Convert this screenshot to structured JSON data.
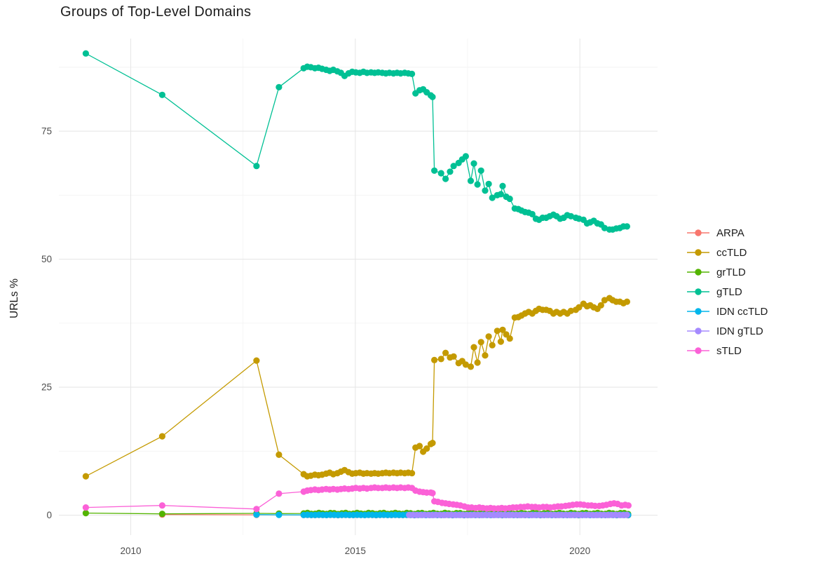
{
  "chart_data": {
    "type": "line",
    "title": "Groups of Top-Level Domains",
    "xlabel": "",
    "ylabel": "URLs %",
    "legend_position": "right",
    "grid": true,
    "xlim": [
      2008.4,
      2021.73
    ],
    "ylim": [
      -3.9,
      93.1
    ],
    "x_ticks": [
      2010,
      2015,
      2020
    ],
    "x_minor": [
      2012.5,
      2017.5
    ],
    "y_ticks": [
      0,
      25,
      50,
      75
    ],
    "y_minor": [
      12.5,
      37.5,
      62.5,
      87.5
    ],
    "colors": {
      "background": "#FFFFFF",
      "grid_major": "#E7E7E7",
      "grid_minor": "#F3F3F3",
      "tick_text": "#4D4D4D",
      "text": "#1C1C1C"
    },
    "series": [
      {
        "name": "ARPA",
        "color": "#F8766D",
        "points": [
          [
            2010.7,
            0.12
          ],
          [
            2012.8,
            0.06
          ]
        ],
        "gen": {
          "from": 2013.85,
          "to": 2021.08,
          "step": 0.085,
          "value": 0.03,
          "wobble": 0.02
        }
      },
      {
        "name": "ccTLD",
        "color": "#C49A00",
        "points": [
          [
            2009,
            7.6
          ],
          [
            2010.7,
            15.4
          ],
          [
            2012.8,
            30.2
          ],
          [
            2013.3,
            11.8
          ],
          [
            2013.85,
            8.0
          ],
          [
            2013.93,
            7.6
          ],
          [
            2014.01,
            7.7
          ],
          [
            2014.1,
            7.9
          ],
          [
            2014.18,
            7.8
          ],
          [
            2014.26,
            7.9
          ],
          [
            2014.35,
            8.1
          ],
          [
            2014.43,
            8.3
          ],
          [
            2014.51,
            8.0
          ],
          [
            2014.6,
            8.2
          ],
          [
            2014.68,
            8.5
          ],
          [
            2014.76,
            8.8
          ],
          [
            2014.85,
            8.4
          ],
          [
            2014.93,
            8.1
          ],
          [
            2015.01,
            8.2
          ],
          [
            2015.1,
            8.3
          ],
          [
            2015.18,
            8.1
          ],
          [
            2015.26,
            8.2
          ],
          [
            2015.35,
            8.1
          ],
          [
            2015.43,
            8.2
          ],
          [
            2015.51,
            8.1
          ],
          [
            2015.6,
            8.2
          ],
          [
            2015.68,
            8.3
          ],
          [
            2015.76,
            8.2
          ],
          [
            2015.85,
            8.3
          ],
          [
            2015.93,
            8.2
          ],
          [
            2016.01,
            8.3
          ],
          [
            2016.1,
            8.2
          ],
          [
            2016.18,
            8.3
          ],
          [
            2016.26,
            8.2
          ],
          [
            2016.34,
            13.2
          ],
          [
            2016.43,
            13.5
          ],
          [
            2016.51,
            12.4
          ],
          [
            2016.59,
            13.0
          ],
          [
            2016.68,
            13.9
          ],
          [
            2016.72,
            14.1
          ],
          [
            2016.76,
            30.3
          ],
          [
            2016.91,
            30.5
          ],
          [
            2017.01,
            31.7
          ],
          [
            2017.11,
            30.8
          ],
          [
            2017.19,
            31.0
          ],
          [
            2017.3,
            29.7
          ],
          [
            2017.38,
            30.1
          ],
          [
            2017.46,
            29.4
          ],
          [
            2017.57,
            29.0
          ],
          [
            2017.64,
            32.8
          ],
          [
            2017.72,
            29.8
          ],
          [
            2017.8,
            33.8
          ],
          [
            2017.89,
            31.2
          ],
          [
            2017.97,
            34.9
          ],
          [
            2018.05,
            33.2
          ],
          [
            2018.16,
            36.0
          ],
          [
            2018.24,
            33.9
          ],
          [
            2018.28,
            36.2
          ],
          [
            2018.36,
            35.3
          ],
          [
            2018.44,
            34.5
          ],
          [
            2018.55,
            38.6
          ],
          [
            2018.63,
            38.7
          ],
          [
            2018.7,
            39.0
          ],
          [
            2018.78,
            39.4
          ],
          [
            2018.86,
            39.7
          ],
          [
            2018.94,
            39.4
          ],
          [
            2019.02,
            39.9
          ],
          [
            2019.09,
            40.3
          ],
          [
            2019.17,
            40.1
          ],
          [
            2019.25,
            40.1
          ],
          [
            2019.33,
            39.9
          ],
          [
            2019.41,
            39.4
          ],
          [
            2019.48,
            39.7
          ],
          [
            2019.56,
            39.4
          ],
          [
            2019.64,
            39.7
          ],
          [
            2019.72,
            39.4
          ],
          [
            2019.8,
            39.9
          ],
          [
            2019.91,
            40.1
          ],
          [
            2019.98,
            40.6
          ],
          [
            2020.08,
            41.3
          ],
          [
            2020.16,
            40.8
          ],
          [
            2020.23,
            41.0
          ],
          [
            2020.31,
            40.6
          ],
          [
            2020.39,
            40.3
          ],
          [
            2020.47,
            41.0
          ],
          [
            2020.55,
            42.0
          ],
          [
            2020.66,
            42.4
          ],
          [
            2020.73,
            42.0
          ],
          [
            2020.81,
            41.7
          ],
          [
            2020.89,
            41.7
          ],
          [
            2020.97,
            41.4
          ],
          [
            2021.05,
            41.7
          ]
        ]
      },
      {
        "name": "grTLD",
        "color": "#53B400",
        "points": [
          [
            2009,
            0.4
          ],
          [
            2010.7,
            0.25
          ],
          [
            2012.8,
            0.35
          ],
          [
            2013.3,
            0.3
          ]
        ],
        "gen": {
          "from": 2013.85,
          "to": 2021.08,
          "step": 0.085,
          "value": 0.33,
          "wobble": 0.12
        }
      },
      {
        "name": "gTLD",
        "color": "#00C094",
        "points": [
          [
            2009,
            90.2
          ],
          [
            2010.7,
            82.1
          ],
          [
            2012.8,
            68.2
          ],
          [
            2013.3,
            83.6
          ],
          [
            2013.85,
            87.3
          ],
          [
            2013.93,
            87.6
          ],
          [
            2014.01,
            87.5
          ],
          [
            2014.1,
            87.3
          ],
          [
            2014.18,
            87.4
          ],
          [
            2014.26,
            87.2
          ],
          [
            2014.35,
            87.0
          ],
          [
            2014.43,
            86.8
          ],
          [
            2014.51,
            87.0
          ],
          [
            2014.6,
            86.7
          ],
          [
            2014.68,
            86.4
          ],
          [
            2014.76,
            85.8
          ],
          [
            2014.85,
            86.3
          ],
          [
            2014.93,
            86.6
          ],
          [
            2015.01,
            86.5
          ],
          [
            2015.1,
            86.4
          ],
          [
            2015.18,
            86.6
          ],
          [
            2015.26,
            86.4
          ],
          [
            2015.35,
            86.5
          ],
          [
            2015.43,
            86.4
          ],
          [
            2015.51,
            86.5
          ],
          [
            2015.6,
            86.4
          ],
          [
            2015.68,
            86.3
          ],
          [
            2015.76,
            86.4
          ],
          [
            2015.85,
            86.3
          ],
          [
            2015.93,
            86.4
          ],
          [
            2016.01,
            86.3
          ],
          [
            2016.1,
            86.4
          ],
          [
            2016.18,
            86.3
          ],
          [
            2016.26,
            86.2
          ],
          [
            2016.34,
            82.4
          ],
          [
            2016.43,
            83.0
          ],
          [
            2016.51,
            83.2
          ],
          [
            2016.59,
            82.6
          ],
          [
            2016.68,
            82.0
          ],
          [
            2016.72,
            81.7
          ],
          [
            2016.76,
            67.3
          ],
          [
            2016.91,
            66.8
          ],
          [
            2017.01,
            65.7
          ],
          [
            2017.11,
            67.1
          ],
          [
            2017.19,
            68.2
          ],
          [
            2017.3,
            68.8
          ],
          [
            2017.38,
            69.5
          ],
          [
            2017.46,
            70.1
          ],
          [
            2017.57,
            65.3
          ],
          [
            2017.64,
            68.7
          ],
          [
            2017.72,
            64.6
          ],
          [
            2017.8,
            67.3
          ],
          [
            2017.89,
            63.4
          ],
          [
            2017.97,
            64.7
          ],
          [
            2018.05,
            62.0
          ],
          [
            2018.16,
            62.5
          ],
          [
            2018.24,
            62.7
          ],
          [
            2018.28,
            64.3
          ],
          [
            2018.36,
            62.2
          ],
          [
            2018.44,
            61.8
          ],
          [
            2018.55,
            59.9
          ],
          [
            2018.63,
            59.8
          ],
          [
            2018.7,
            59.5
          ],
          [
            2018.78,
            59.2
          ],
          [
            2018.86,
            59.1
          ],
          [
            2018.94,
            58.8
          ],
          [
            2019.02,
            57.9
          ],
          [
            2019.09,
            57.7
          ],
          [
            2019.17,
            58.1
          ],
          [
            2019.25,
            58.1
          ],
          [
            2019.33,
            58.4
          ],
          [
            2019.41,
            58.7
          ],
          [
            2019.48,
            58.4
          ],
          [
            2019.56,
            57.9
          ],
          [
            2019.64,
            58.1
          ],
          [
            2019.72,
            58.6
          ],
          [
            2019.8,
            58.4
          ],
          [
            2019.91,
            58.1
          ],
          [
            2019.98,
            57.9
          ],
          [
            2020.08,
            57.7
          ],
          [
            2020.16,
            57.0
          ],
          [
            2020.23,
            57.2
          ],
          [
            2020.31,
            57.5
          ],
          [
            2020.39,
            57.0
          ],
          [
            2020.47,
            56.8
          ],
          [
            2020.55,
            56.1
          ],
          [
            2020.66,
            55.8
          ],
          [
            2020.73,
            55.8
          ],
          [
            2020.81,
            56.0
          ],
          [
            2020.89,
            56.1
          ],
          [
            2020.97,
            56.4
          ],
          [
            2021.05,
            56.4
          ]
        ]
      },
      {
        "name": "IDN ccTLD",
        "color": "#00B6EB",
        "points": [
          [
            2012.8,
            0.1
          ],
          [
            2013.3,
            0.06
          ]
        ],
        "gen": {
          "from": 2013.85,
          "to": 2021.08,
          "step": 0.085,
          "value": 0.05,
          "wobble": 0.03
        }
      },
      {
        "name": "IDN gTLD",
        "color": "#A58AFF",
        "points": [],
        "gen": {
          "from": 2016.2,
          "to": 2021.08,
          "step": 0.085,
          "value": 0.04,
          "wobble": 0.02
        }
      },
      {
        "name": "sTLD",
        "color": "#FB61D7",
        "points": [
          [
            2009,
            1.5
          ],
          [
            2010.7,
            1.9
          ],
          [
            2012.8,
            1.2
          ],
          [
            2013.3,
            4.2
          ],
          [
            2013.85,
            4.6
          ],
          [
            2013.93,
            4.8
          ],
          [
            2014.01,
            4.9
          ],
          [
            2014.1,
            5.0
          ],
          [
            2014.18,
            4.9
          ],
          [
            2014.26,
            5.0
          ],
          [
            2014.35,
            5.1
          ],
          [
            2014.43,
            5.0
          ],
          [
            2014.51,
            5.1
          ],
          [
            2014.6,
            5.0
          ],
          [
            2014.68,
            5.1
          ],
          [
            2014.76,
            5.2
          ],
          [
            2014.85,
            5.1
          ],
          [
            2014.93,
            5.2
          ],
          [
            2015.01,
            5.3
          ],
          [
            2015.1,
            5.2
          ],
          [
            2015.18,
            5.3
          ],
          [
            2015.26,
            5.2
          ],
          [
            2015.35,
            5.3
          ],
          [
            2015.43,
            5.4
          ],
          [
            2015.51,
            5.3
          ],
          [
            2015.6,
            5.3
          ],
          [
            2015.68,
            5.4
          ],
          [
            2015.76,
            5.3
          ],
          [
            2015.85,
            5.4
          ],
          [
            2015.93,
            5.3
          ],
          [
            2016.01,
            5.4
          ],
          [
            2016.1,
            5.3
          ],
          [
            2016.18,
            5.4
          ],
          [
            2016.26,
            5.3
          ],
          [
            2016.34,
            4.8
          ],
          [
            2016.43,
            4.6
          ],
          [
            2016.51,
            4.5
          ],
          [
            2016.59,
            4.4
          ],
          [
            2016.68,
            4.4
          ],
          [
            2016.72,
            4.3
          ],
          [
            2016.76,
            2.7
          ],
          [
            2016.84,
            2.6
          ],
          [
            2016.93,
            2.4
          ],
          [
            2017.01,
            2.3
          ],
          [
            2017.09,
            2.2
          ],
          [
            2017.18,
            2.1
          ],
          [
            2017.26,
            2.0
          ],
          [
            2017.34,
            1.9
          ],
          [
            2017.43,
            1.7
          ],
          [
            2017.51,
            1.5
          ],
          [
            2017.59,
            1.5
          ],
          [
            2017.68,
            1.4
          ],
          [
            2017.76,
            1.5
          ],
          [
            2017.84,
            1.4
          ],
          [
            2017.93,
            1.3
          ],
          [
            2018.01,
            1.4
          ],
          [
            2018.09,
            1.3
          ],
          [
            2018.18,
            1.3
          ],
          [
            2018.26,
            1.4
          ],
          [
            2018.34,
            1.3
          ],
          [
            2018.43,
            1.4
          ],
          [
            2018.51,
            1.5
          ],
          [
            2018.59,
            1.5
          ],
          [
            2018.68,
            1.6
          ],
          [
            2018.76,
            1.6
          ],
          [
            2018.84,
            1.7
          ],
          [
            2018.93,
            1.6
          ],
          [
            2019.01,
            1.6
          ],
          [
            2019.09,
            1.5
          ],
          [
            2019.18,
            1.6
          ],
          [
            2019.26,
            1.6
          ],
          [
            2019.34,
            1.5
          ],
          [
            2019.43,
            1.6
          ],
          [
            2019.51,
            1.7
          ],
          [
            2019.59,
            1.7
          ],
          [
            2019.68,
            1.8
          ],
          [
            2019.76,
            1.9
          ],
          [
            2019.84,
            2.0
          ],
          [
            2019.93,
            2.1
          ],
          [
            2020.01,
            2.1
          ],
          [
            2020.09,
            2.0
          ],
          [
            2020.18,
            1.9
          ],
          [
            2020.26,
            1.9
          ],
          [
            2020.34,
            1.8
          ],
          [
            2020.43,
            1.8
          ],
          [
            2020.51,
            1.9
          ],
          [
            2020.59,
            2.0
          ],
          [
            2020.68,
            2.2
          ],
          [
            2020.76,
            2.3
          ],
          [
            2020.84,
            2.2
          ],
          [
            2020.93,
            1.9
          ],
          [
            2021.01,
            2.0
          ],
          [
            2021.08,
            1.9
          ]
        ]
      }
    ]
  }
}
